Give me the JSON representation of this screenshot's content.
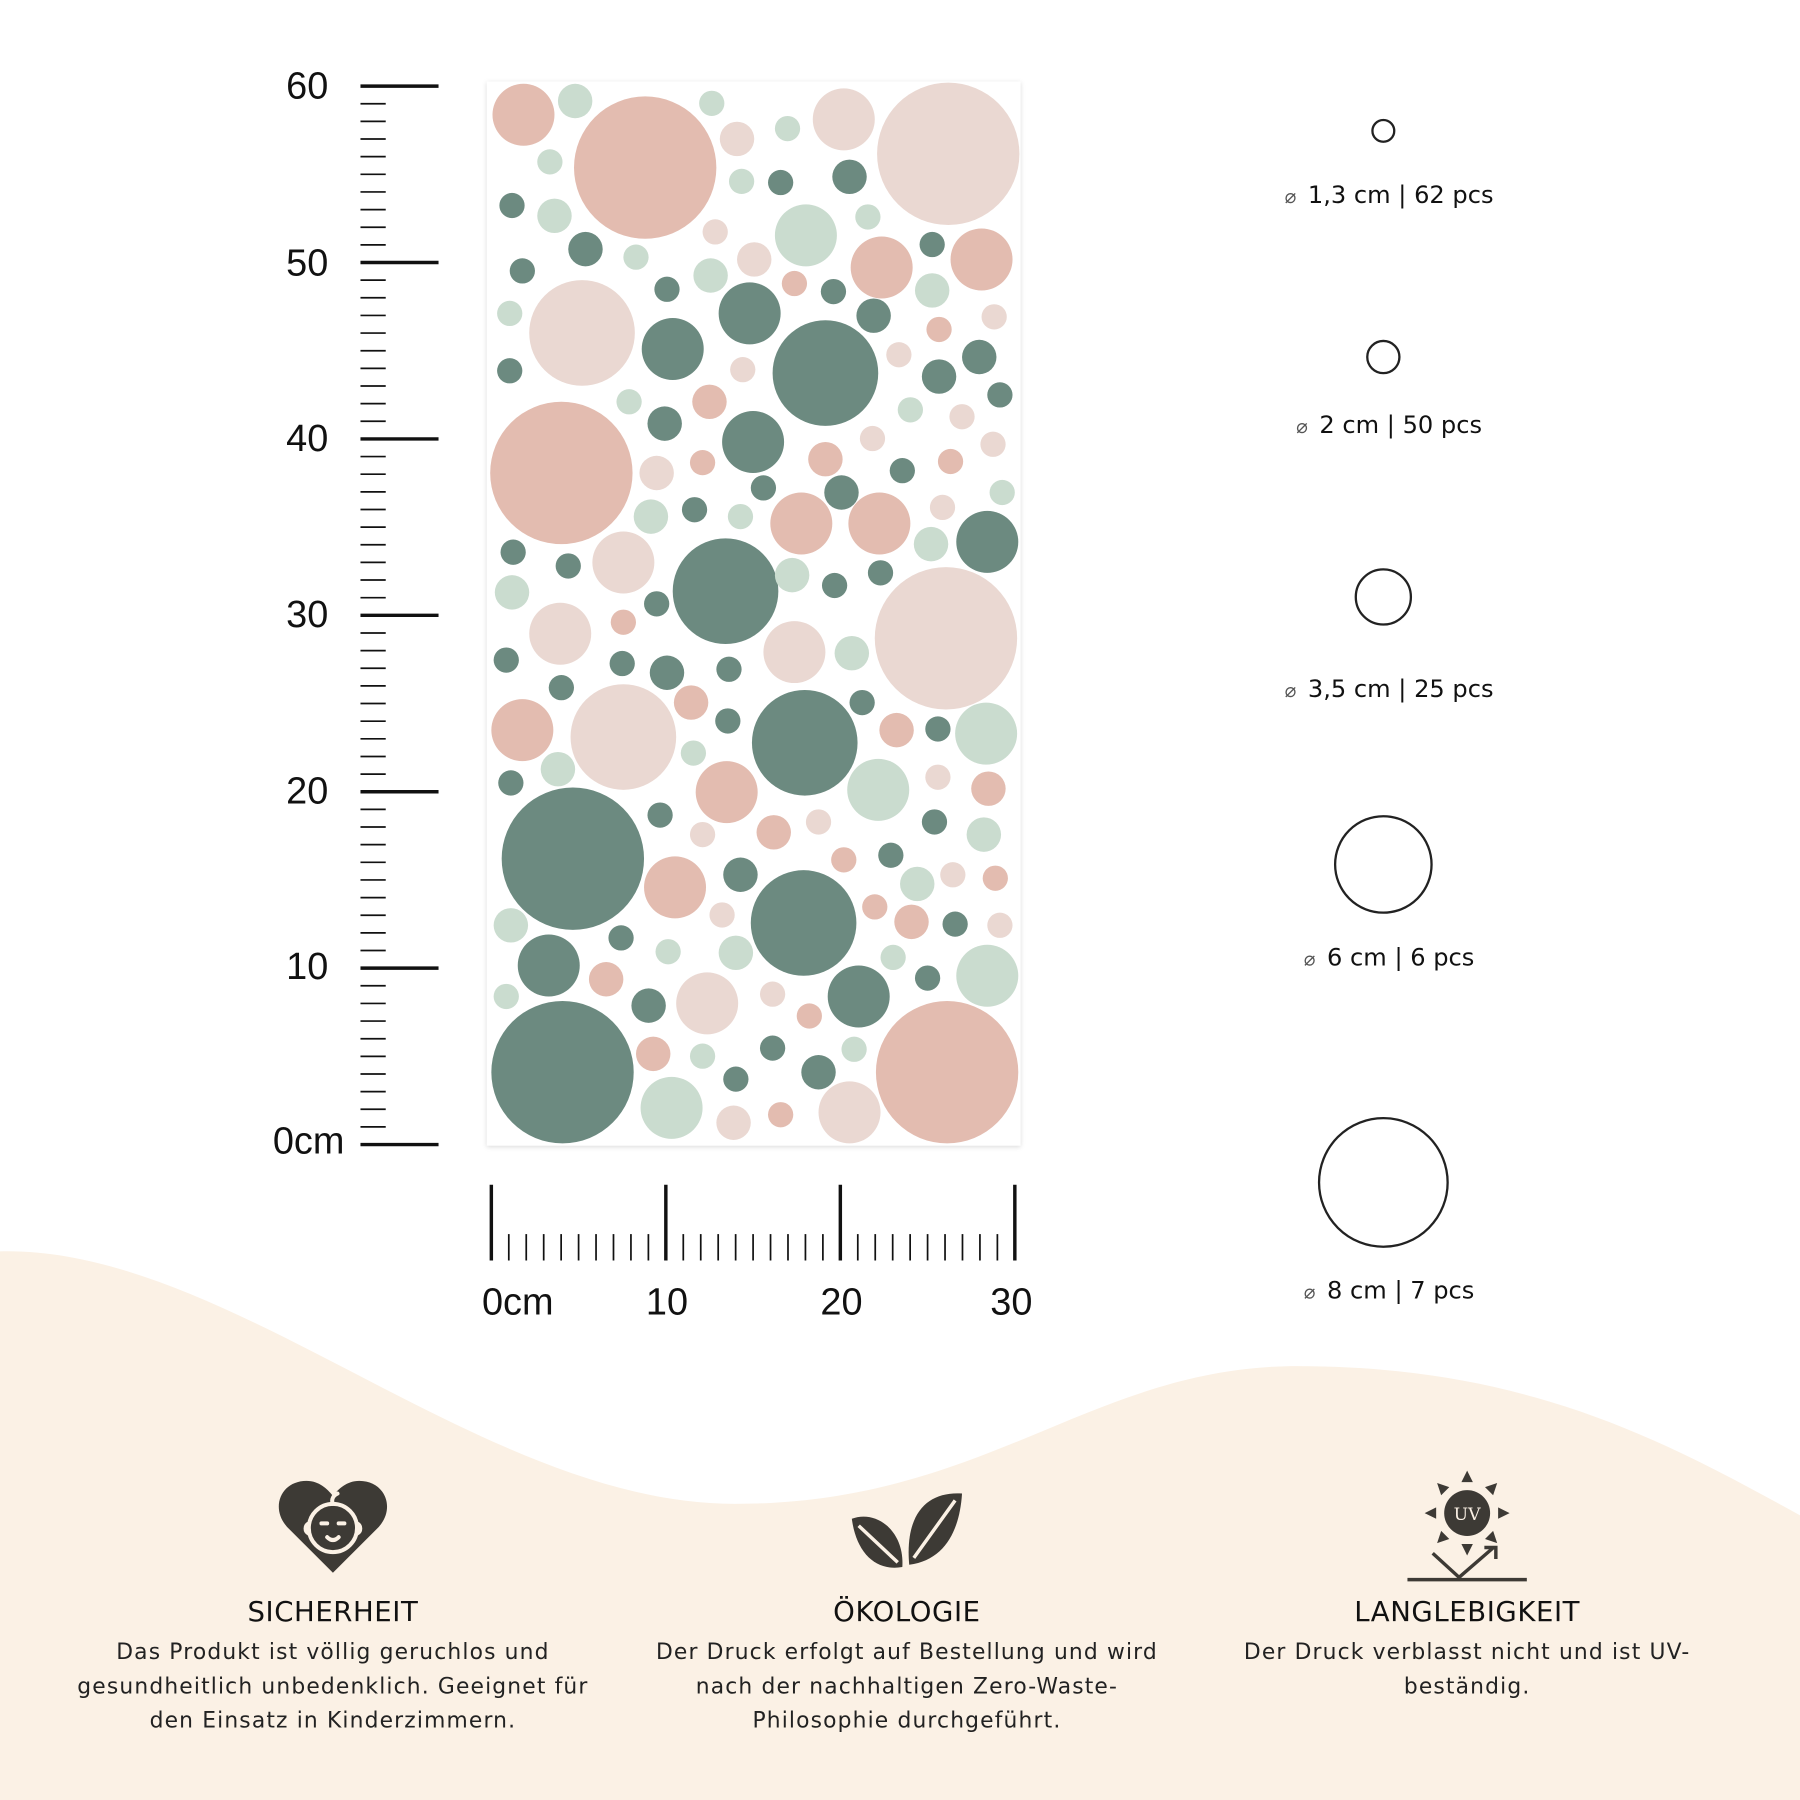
{
  "colors": {
    "pink": "#e3bcb0",
    "light_pink": "#ead8d2",
    "green": "#6c8a80",
    "light_green": "#cadccf",
    "cream": "#fbf1e5",
    "icon": "#3d3a35"
  },
  "vertical_ruler": {
    "labels": [
      "60",
      "50",
      "40",
      "30",
      "20",
      "10",
      "0cm"
    ]
  },
  "horizontal_ruler": {
    "labels": [
      "0cm",
      "10",
      "20",
      "30"
    ]
  },
  "sizes": [
    {
      "diameter_symbol": "⌀",
      "text": "1,3 cm | 62 pcs"
    },
    {
      "diameter_symbol": "⌀",
      "text": "2 cm | 50 pcs"
    },
    {
      "diameter_symbol": "⌀",
      "text": "3,5 cm | 25 pcs"
    },
    {
      "diameter_symbol": "⌀",
      "text": "6 cm | 6 pcs"
    },
    {
      "diameter_symbol": "⌀",
      "text": "8 cm | 7 pcs"
    }
  ],
  "features": [
    {
      "icon": "baby-heart-icon",
      "title": "SICHERHEIT",
      "text": "Das Produkt ist völlig geruchlos und gesundheitlich unbedenklich. Geeignet für den Einsatz in Kinderzimmern."
    },
    {
      "icon": "leaves-icon",
      "title": "ÖKOLOGIE",
      "text": "Der Druck erfolgt auf Bestellung und wird nach der nachhaltigen Zero-Waste-Philosophie durchgeführt."
    },
    {
      "icon": "uv-sun-icon",
      "title": "LANGLEBIGKEIT",
      "text": "Der Druck verblasst nicht und ist UV-beständig.",
      "icon_text": "UV"
    }
  ]
}
